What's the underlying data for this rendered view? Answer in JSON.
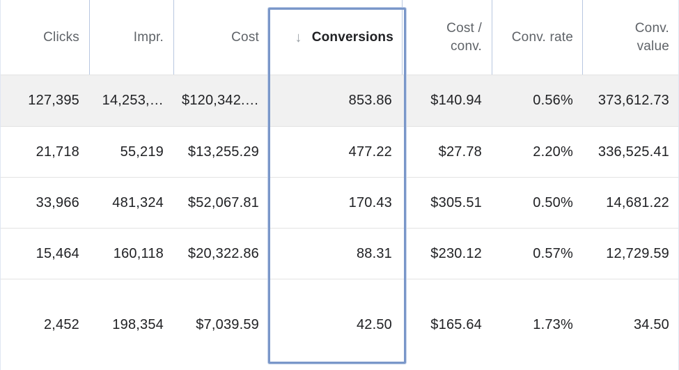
{
  "table": {
    "columns": [
      {
        "key": "clicks",
        "label": "Clicks",
        "line2": ""
      },
      {
        "key": "impr",
        "label": "Impr.",
        "line2": ""
      },
      {
        "key": "cost",
        "label": "Cost",
        "line2": ""
      },
      {
        "key": "conversions",
        "label": "Conversions",
        "line2": "",
        "sorted": true,
        "sort_icon": "arrow-down-icon"
      },
      {
        "key": "cost_conv",
        "label": "Cost /",
        "line2": "conv."
      },
      {
        "key": "conv_rate",
        "label": "Conv. rate",
        "line2": ""
      },
      {
        "key": "conv_value",
        "label": "Conv.",
        "line2": "value"
      }
    ],
    "rows": [
      {
        "clicks": "127,395",
        "impr": "14,253,…",
        "cost": "$120,342.…",
        "conversions": "853.86",
        "cost_conv": "$140.94",
        "conv_rate": "0.56%",
        "conv_value": "373,612.73"
      },
      {
        "clicks": "21,718",
        "impr": "55,219",
        "cost": "$13,255.29",
        "conversions": "477.22",
        "cost_conv": "$27.78",
        "conv_rate": "2.20%",
        "conv_value": "336,525.41"
      },
      {
        "clicks": "33,966",
        "impr": "481,324",
        "cost": "$52,067.81",
        "conversions": "170.43",
        "cost_conv": "$305.51",
        "conv_rate": "0.50%",
        "conv_value": "14,681.22"
      },
      {
        "clicks": "15,464",
        "impr": "160,118",
        "cost": "$20,322.86",
        "conversions": "88.31",
        "cost_conv": "$230.12",
        "conv_rate": "0.57%",
        "conv_value": "12,729.59"
      },
      {
        "clicks": "2,452",
        "impr": "198,354",
        "cost": "$7,039.59",
        "conversions": "42.50",
        "cost_conv": "$165.64",
        "conv_rate": "1.73%",
        "conv_value": "34.50"
      }
    ]
  },
  "colors": {
    "highlight_box": "#7a97c9",
    "header_separator": "#b8c7e0",
    "selected_row": "#f1f1f1"
  }
}
